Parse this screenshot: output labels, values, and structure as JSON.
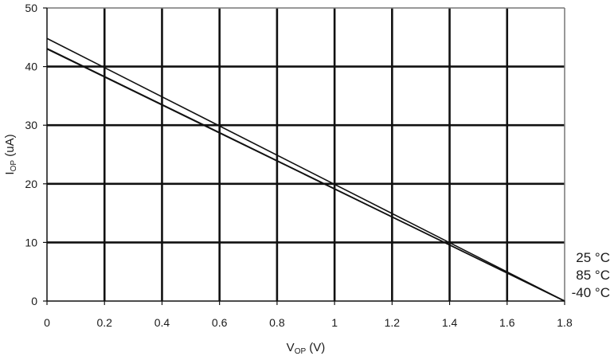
{
  "chart_data": {
    "type": "line",
    "title": "",
    "xlabel": {
      "main": "V",
      "sub": "OP",
      "unit": " (V)"
    },
    "ylabel": {
      "main": "I",
      "sub": "OP",
      "unit": " (uA)"
    },
    "xlim": [
      0,
      1.8
    ],
    "ylim": [
      0,
      50
    ],
    "xticks": [
      0,
      0.2,
      0.4,
      0.6,
      0.8,
      1,
      1.2,
      1.4,
      1.6,
      1.8
    ],
    "xtick_labels": [
      "0",
      "0.2",
      "0.4",
      "0.6",
      "0.8",
      "1",
      "1.2",
      "1.4",
      "1.6",
      "1.8"
    ],
    "yticks": [
      0,
      10,
      20,
      30,
      40,
      50
    ],
    "ytick_labels": [
      "0",
      "10",
      "20",
      "30",
      "40",
      "50"
    ],
    "grid": true,
    "legend_position": "right, bottom",
    "series": [
      {
        "name": "25 °C",
        "x": [
          0,
          1.8
        ],
        "y": [
          44.8,
          0
        ]
      },
      {
        "name": "85 °C",
        "x": [
          0,
          1.8
        ],
        "y": [
          43.1,
          0
        ]
      },
      {
        "name": "-40 °C",
        "x": [
          0,
          1.8
        ],
        "y": [
          43.0,
          0
        ]
      }
    ]
  }
}
